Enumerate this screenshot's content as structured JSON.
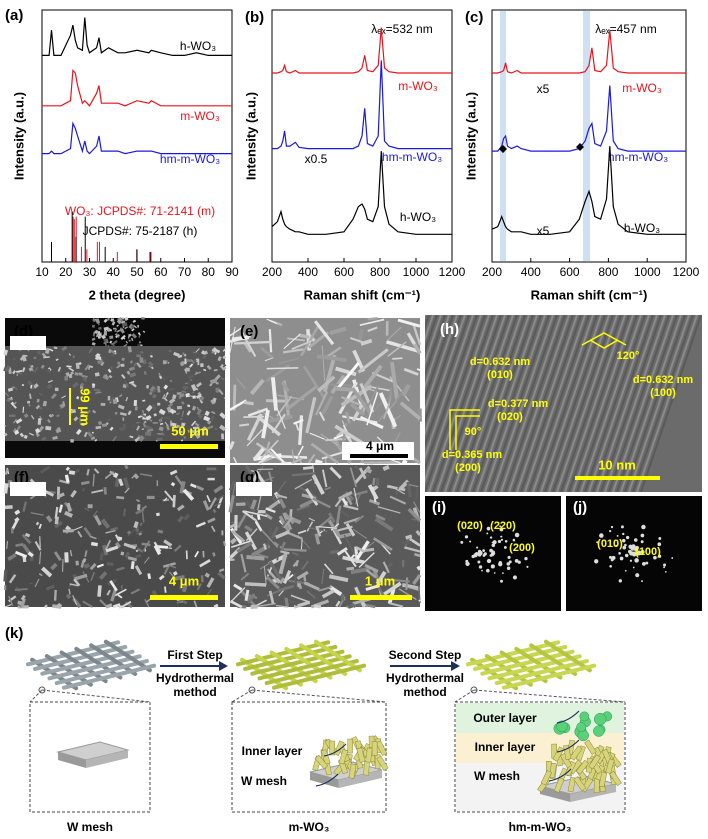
{
  "chart_data": [
    {
      "type": "line",
      "panel": "(a)",
      "xlabel": "2 theta (degree)",
      "ylabel": "Intensity (a.u.)",
      "xlim": [
        10,
        90
      ],
      "xticks": [
        10,
        20,
        30,
        40,
        50,
        60,
        70,
        80,
        90
      ],
      "ylim": [
        0,
        100
      ],
      "x": [
        10,
        13,
        14,
        15,
        18,
        22,
        23,
        24,
        25,
        27,
        28,
        29,
        30,
        33,
        34,
        35,
        38,
        42,
        45,
        50,
        55,
        56,
        60,
        65,
        70,
        75,
        80,
        85,
        90
      ],
      "series": [
        {
          "name": "h-WO₃",
          "color": "#000000",
          "values": [
            82,
            82,
            92,
            82,
            82,
            90,
            94,
            88,
            85,
            84,
            97,
            86,
            83,
            85,
            89,
            83,
            85,
            83,
            83,
            84,
            83,
            84,
            83,
            82,
            82,
            83,
            82,
            82,
            82
          ]
        },
        {
          "name": "m-WO₃",
          "color": "#e8141c",
          "values": [
            62,
            62,
            62,
            62,
            62,
            64,
            76,
            75,
            70,
            63,
            64,
            63,
            62,
            67,
            70,
            63,
            63,
            63,
            62,
            64,
            63,
            64,
            62,
            62,
            62,
            62,
            62,
            62,
            62
          ]
        },
        {
          "name": "hm-m-WO₃",
          "color": "#1a1adc",
          "values": [
            43,
            43,
            44,
            43,
            43,
            45,
            55,
            53,
            50,
            44,
            48,
            44,
            43,
            46,
            50,
            44,
            44,
            44,
            43,
            44,
            44,
            44,
            43,
            43,
            43,
            43,
            43,
            43,
            43
          ]
        }
      ],
      "references": [
        {
          "name": "WO₃: JCPDS#: 71-2141 (m)",
          "color": "#e8141c",
          "x": [
            23.1,
            23.6,
            24.4,
            26.6,
            28.9,
            33.3,
            34.2,
            41.7,
            49.9,
            55.9
          ],
          "values": [
            18,
            17,
            18,
            6,
            5,
            8,
            8,
            4,
            5,
            4
          ]
        },
        {
          "name": "JCPDS#: 75-2187 (h)",
          "color": "#000000",
          "x": [
            14,
            22.7,
            24.3,
            28.2,
            36.6,
            50,
            55.5
          ],
          "values": [
            8,
            20,
            10,
            18,
            6,
            5,
            4
          ]
        }
      ]
    },
    {
      "type": "line",
      "panel": "(b)",
      "title": "λₑₓ=532 nm",
      "xlabel": "Raman shift (cm⁻¹)",
      "ylabel": "Intensity (a.u.)",
      "xlim": [
        200,
        1200
      ],
      "xticks": [
        200,
        400,
        600,
        800,
        1000,
        1200
      ],
      "ylim": [
        0,
        100
      ],
      "x": [
        200,
        230,
        250,
        260,
        270,
        280,
        300,
        330,
        350,
        400,
        500,
        600,
        650,
        680,
        700,
        715,
        730,
        760,
        790,
        807,
        825,
        850,
        900,
        1000,
        1100,
        1200
      ],
      "series": [
        {
          "name": "m-WO₃",
          "color": "#e8141c",
          "values": [
            75,
            75,
            75.5,
            76,
            78,
            75.5,
            75,
            76,
            75,
            75,
            75,
            75,
            75,
            75.5,
            77,
            82,
            76,
            75.5,
            78,
            93,
            77,
            75.5,
            75,
            75,
            75,
            75
          ]
        },
        {
          "name": "hm-m-WO₃",
          "color": "#1a1adc",
          "values": [
            45,
            45,
            46,
            48,
            52,
            46,
            46,
            47.5,
            45.5,
            45,
            45,
            45,
            45,
            46,
            50,
            61,
            47,
            46,
            50,
            80,
            48,
            46,
            45,
            45,
            45,
            45
          ]
        },
        {
          "name": "h-WO₃",
          "color": "#000000",
          "values": [
            14,
            16,
            20,
            17,
            15,
            14,
            13,
            12,
            12,
            11,
            11,
            12,
            17,
            22,
            23,
            21,
            17,
            16,
            22,
            44,
            22,
            15,
            12,
            11,
            11,
            11
          ]
        }
      ],
      "annotations": [
        "x0.5"
      ]
    },
    {
      "type": "line",
      "panel": "(c)",
      "title": "λₑₓ=457 nm",
      "xlabel": "Raman shift (cm⁻¹)",
      "ylabel": "Intensity (a.u.)",
      "xlim": [
        200,
        1200
      ],
      "xticks": [
        200,
        400,
        600,
        800,
        1000,
        1200
      ],
      "ylim": [
        0,
        100
      ],
      "x": [
        200,
        230,
        250,
        260,
        270,
        280,
        300,
        330,
        350,
        400,
        500,
        600,
        650,
        680,
        700,
        715,
        730,
        760,
        790,
        807,
        825,
        850,
        900,
        1000,
        1100,
        1200
      ],
      "series": [
        {
          "name": "m-WO₃",
          "color": "#e8141c",
          "values": [
            75,
            75,
            75.5,
            76,
            79,
            75.5,
            75,
            76,
            75,
            75,
            75,
            75,
            75,
            75.5,
            78,
            85,
            76,
            75.5,
            78,
            92,
            77,
            75.5,
            75,
            75,
            75,
            75
          ]
        },
        {
          "name": "hm-m-WO₃",
          "color": "#1a1adc",
          "values": [
            44,
            44,
            46,
            49,
            50,
            46,
            45,
            46,
            45,
            44,
            44,
            44,
            45,
            48,
            53,
            55,
            47,
            46,
            52,
            70,
            48,
            45,
            44,
            44,
            44,
            44
          ]
        },
        {
          "name": "h-WO₃",
          "color": "#000000",
          "values": [
            13,
            14,
            18,
            16,
            14,
            13,
            12,
            12,
            12,
            11,
            11,
            12,
            17,
            24,
            28,
            24,
            18,
            17,
            25,
            46,
            22,
            15,
            12,
            11,
            11,
            11
          ]
        }
      ],
      "annotations": [
        "x5",
        "x5"
      ]
    }
  ],
  "images": [
    {
      "panel": "(d)",
      "labels": [
        "99 μm",
        "50 μm"
      ]
    },
    {
      "panel": "(e)",
      "labels": [
        "4 μm"
      ]
    },
    {
      "panel": "(f)",
      "labels": [
        "4 μm"
      ]
    },
    {
      "panel": "(g)",
      "labels": [
        "1 μm"
      ]
    },
    {
      "panel": "(h)",
      "labels": [
        "d=0.632 nm",
        "(010)",
        "120°",
        "d=0.632 nm",
        "(100)",
        "d=0.377 nm",
        "(020)",
        "90°",
        "d=0.365 nm",
        "(200)",
        "10 nm"
      ]
    },
    {
      "panel": "(i)",
      "labels": [
        "(020)",
        "(220)",
        "(200)"
      ]
    },
    {
      "panel": "(j)",
      "labels": [
        "(010)",
        "(100)"
      ]
    }
  ],
  "diagram": {
    "panel": "(k)",
    "steps": [
      {
        "title": "First Step",
        "method": [
          "Hydrothermal",
          "method"
        ]
      },
      {
        "title": "Second Step",
        "method": [
          "Hydrothermal",
          "method"
        ]
      }
    ],
    "stages": [
      {
        "name": "W mesh"
      },
      {
        "name": "m-WO₃",
        "layers": [
          "Inner layer",
          "W mesh"
        ]
      },
      {
        "name": "hm-m-WO₃",
        "layers": [
          "Outer layer",
          "Inner layer",
          "W mesh"
        ]
      }
    ]
  }
}
